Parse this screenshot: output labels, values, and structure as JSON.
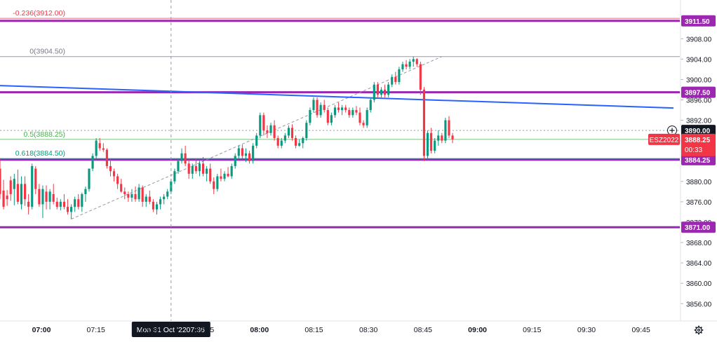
{
  "chart_data": {
    "type": "candlestick",
    "symbol": "ESZ2022",
    "price_axis": {
      "ticks": [
        "3908.00",
        "3904.00",
        "3900.00",
        "3896.00",
        "3892.00",
        "3888.00",
        "3884.00",
        "3880.00",
        "3876.00",
        "3872.00",
        "3868.00",
        "3864.00",
        "3860.00",
        "3856.00"
      ],
      "range": [
        3852.6,
        3915.6
      ]
    },
    "time_axis": {
      "ticks": [
        {
          "label": "07:00",
          "bold": true
        },
        {
          "label": "07:15",
          "bold": false
        },
        {
          "label": "07:30",
          "bold": false
        },
        {
          "label": "07:45",
          "bold": false
        },
        {
          "label": "08:00",
          "bold": true
        },
        {
          "label": "08:15",
          "bold": false
        },
        {
          "label": "08:30",
          "bold": false
        },
        {
          "label": "08:45",
          "bold": false
        },
        {
          "label": "09:00",
          "bold": true
        },
        {
          "label": "09:15",
          "bold": false
        },
        {
          "label": "09:30",
          "bold": false
        },
        {
          "label": "09:45",
          "bold": false
        }
      ],
      "start": "06:48",
      "end": "09:57",
      "bar_minutes": 1
    },
    "crosshair": {
      "date_label": "Mon 31 Oct '22",
      "time_label": "07:36",
      "time": "07:36"
    },
    "level_lines": [
      {
        "price": 3911.5,
        "label": "3911.50",
        "color": "#9c27b0"
      },
      {
        "price": 3897.5,
        "label": "3897.50",
        "color": "#9c27b0"
      },
      {
        "price": 3884.25,
        "label": "3884.25",
        "color": "#9c27b0"
      },
      {
        "price": 3871.0,
        "label": "3871.00",
        "color": "#9c27b0"
      }
    ],
    "fibonacci": [
      {
        "label": "-0.236(3912.00)",
        "price": 3912.0,
        "color": "#f23645"
      },
      {
        "label": "0(3904.50)",
        "price": 3904.5,
        "color": "#787b86"
      },
      {
        "label": "0.5(3888.25)",
        "price": 3888.25,
        "color": "#4caf50"
      },
      {
        "label": "0.618(3884.50)",
        "price": 3884.5,
        "color": "#089981"
      }
    ],
    "trendline": {
      "points": [
        {
          "time": "06:48",
          "price": 3898.8
        },
        {
          "time": "09:57",
          "price": 3894.4
        }
      ],
      "color": "#2962ff"
    },
    "fib_base_line": {
      "points": [
        {
          "time": "07:08",
          "price": 3872.6
        },
        {
          "time": "08:52",
          "price": 3904.5
        }
      ]
    },
    "current_price": {
      "label": "3890.00",
      "price": 3890.0
    },
    "last_price": {
      "label": "3888.25",
      "countdown": "00:33",
      "price": 3888.25,
      "color": "#f23645"
    },
    "candles": [
      {
        "time": "06:48",
        "o": 3882.5,
        "h": 3884.2,
        "l": 3876.5,
        "c": 3877.5
      },
      {
        "time": "06:49",
        "o": 3878.2,
        "h": 3880.3,
        "l": 3874.5,
        "c": 3875.0
      },
      {
        "time": "06:50",
        "o": 3877.2,
        "h": 3878.3,
        "l": 3875.2,
        "c": 3876.5
      },
      {
        "time": "06:51",
        "o": 3880.2,
        "h": 3881.0,
        "l": 3876.2,
        "c": 3877.5
      },
      {
        "time": "06:52",
        "o": 3878.5,
        "h": 3881.5,
        "l": 3875.3,
        "c": 3880.5
      },
      {
        "time": "06:53",
        "o": 3879.5,
        "h": 3882.3,
        "l": 3875.5,
        "c": 3876.0
      },
      {
        "time": "06:54",
        "o": 3875.5,
        "h": 3881.0,
        "l": 3874.5,
        "c": 3879.5
      },
      {
        "time": "06:55",
        "o": 3879.5,
        "h": 3881.0,
        "l": 3875.2,
        "c": 3876.5
      },
      {
        "time": "06:56",
        "o": 3876.0,
        "h": 3877.5,
        "l": 3873.5,
        "c": 3875.0
      },
      {
        "time": "06:57",
        "o": 3875.0,
        "h": 3883.5,
        "l": 3874.5,
        "c": 3883.0
      },
      {
        "time": "06:58",
        "o": 3882.5,
        "h": 3883.0,
        "l": 3877.5,
        "c": 3878.5
      },
      {
        "time": "06:59",
        "o": 3878.5,
        "h": 3879.5,
        "l": 3875.0,
        "c": 3875.5
      },
      {
        "time": "07:00",
        "o": 3875.5,
        "h": 3879.2,
        "l": 3872.8,
        "c": 3878.5
      },
      {
        "time": "07:01",
        "o": 3878.0,
        "h": 3879.2,
        "l": 3874.5,
        "c": 3876.0
      },
      {
        "time": "07:02",
        "o": 3876.0,
        "h": 3878.5,
        "l": 3874.5,
        "c": 3878.0
      },
      {
        "time": "07:03",
        "o": 3877.5,
        "h": 3879.5,
        "l": 3875.5,
        "c": 3876.0
      },
      {
        "time": "07:04",
        "o": 3876.0,
        "h": 3876.8,
        "l": 3874.5,
        "c": 3875.0
      },
      {
        "time": "07:05",
        "o": 3875.0,
        "h": 3876.5,
        "l": 3874.3,
        "c": 3876.0
      },
      {
        "time": "07:06",
        "o": 3876.0,
        "h": 3877.5,
        "l": 3874.5,
        "c": 3875.0
      },
      {
        "time": "07:07",
        "o": 3875.0,
        "h": 3876.5,
        "l": 3873.5,
        "c": 3874.0
      },
      {
        "time": "07:08",
        "o": 3874.0,
        "h": 3875.5,
        "l": 3872.6,
        "c": 3875.0
      },
      {
        "time": "07:09",
        "o": 3875.0,
        "h": 3877.0,
        "l": 3874.0,
        "c": 3876.5
      },
      {
        "time": "07:10",
        "o": 3876.5,
        "h": 3877.5,
        "l": 3874.5,
        "c": 3875.0
      },
      {
        "time": "07:11",
        "o": 3875.0,
        "h": 3877.8,
        "l": 3874.0,
        "c": 3877.5
      },
      {
        "time": "07:12",
        "o": 3877.5,
        "h": 3879.0,
        "l": 3876.0,
        "c": 3878.5
      },
      {
        "time": "07:13",
        "o": 3878.5,
        "h": 3882.5,
        "l": 3878.0,
        "c": 3882.5
      },
      {
        "time": "07:14",
        "o": 3882.5,
        "h": 3885.5,
        "l": 3882.0,
        "c": 3885.0
      },
      {
        "time": "07:15",
        "o": 3885.0,
        "h": 3888.5,
        "l": 3884.5,
        "c": 3888.0
      },
      {
        "time": "07:16",
        "o": 3887.5,
        "h": 3888.5,
        "l": 3886.0,
        "c": 3886.5
      },
      {
        "time": "07:17",
        "o": 3886.5,
        "h": 3887.5,
        "l": 3885.8,
        "c": 3886.2
      },
      {
        "time": "07:18",
        "o": 3886.2,
        "h": 3886.5,
        "l": 3882.5,
        "c": 3883.0
      },
      {
        "time": "07:19",
        "o": 3883.0,
        "h": 3884.5,
        "l": 3881.0,
        "c": 3882.0
      },
      {
        "time": "07:20",
        "o": 3882.0,
        "h": 3882.5,
        "l": 3880.0,
        "c": 3881.0
      },
      {
        "time": "07:21",
        "o": 3881.0,
        "h": 3881.5,
        "l": 3878.5,
        "c": 3879.5
      },
      {
        "time": "07:22",
        "o": 3879.5,
        "h": 3880.5,
        "l": 3877.8,
        "c": 3878.0
      },
      {
        "time": "07:23",
        "o": 3878.0,
        "h": 3878.8,
        "l": 3876.5,
        "c": 3877.5
      },
      {
        "time": "07:24",
        "o": 3877.5,
        "h": 3878.0,
        "l": 3876.0,
        "c": 3876.8
      },
      {
        "time": "07:25",
        "o": 3876.8,
        "h": 3878.5,
        "l": 3876.0,
        "c": 3877.5
      },
      {
        "time": "07:26",
        "o": 3877.5,
        "h": 3879.0,
        "l": 3876.0,
        "c": 3876.5
      },
      {
        "time": "07:27",
        "o": 3876.5,
        "h": 3879.5,
        "l": 3876.0,
        "c": 3878.8
      },
      {
        "time": "07:28",
        "o": 3878.8,
        "h": 3879.2,
        "l": 3875.0,
        "c": 3876.0
      },
      {
        "time": "07:29",
        "o": 3876.0,
        "h": 3877.5,
        "l": 3875.0,
        "c": 3877.0
      },
      {
        "time": "07:30",
        "o": 3877.0,
        "h": 3878.2,
        "l": 3875.5,
        "c": 3876.0
      },
      {
        "time": "07:31",
        "o": 3876.0,
        "h": 3876.5,
        "l": 3874.0,
        "c": 3874.5
      },
      {
        "time": "07:32",
        "o": 3874.5,
        "h": 3876.0,
        "l": 3873.5,
        "c": 3875.5
      },
      {
        "time": "07:33",
        "o": 3875.5,
        "h": 3877.0,
        "l": 3874.5,
        "c": 3876.5
      },
      {
        "time": "07:34",
        "o": 3876.5,
        "h": 3877.5,
        "l": 3875.5,
        "c": 3877.0
      },
      {
        "time": "07:35",
        "o": 3877.0,
        "h": 3878.5,
        "l": 3876.5,
        "c": 3878.0
      },
      {
        "time": "07:36",
        "o": 3878.0,
        "h": 3880.5,
        "l": 3877.5,
        "c": 3880.0
      },
      {
        "time": "07:37",
        "o": 3880.0,
        "h": 3882.5,
        "l": 3879.5,
        "c": 3882.0
      },
      {
        "time": "07:38",
        "o": 3882.0,
        "h": 3884.5,
        "l": 3881.5,
        "c": 3884.0
      },
      {
        "time": "07:39",
        "o": 3884.0,
        "h": 3886.5,
        "l": 3883.5,
        "c": 3885.5
      },
      {
        "time": "07:40",
        "o": 3885.5,
        "h": 3887.0,
        "l": 3883.0,
        "c": 3883.5
      },
      {
        "time": "07:41",
        "o": 3883.5,
        "h": 3884.5,
        "l": 3880.5,
        "c": 3881.5
      },
      {
        "time": "07:42",
        "o": 3881.5,
        "h": 3883.5,
        "l": 3880.5,
        "c": 3883.0
      },
      {
        "time": "07:43",
        "o": 3883.0,
        "h": 3884.5,
        "l": 3881.5,
        "c": 3882.0
      },
      {
        "time": "07:44",
        "o": 3882.0,
        "h": 3884.0,
        "l": 3881.0,
        "c": 3883.5
      },
      {
        "time": "07:45",
        "o": 3883.5,
        "h": 3884.8,
        "l": 3881.0,
        "c": 3881.5
      },
      {
        "time": "07:46",
        "o": 3881.5,
        "h": 3883.0,
        "l": 3880.0,
        "c": 3882.5
      },
      {
        "time": "07:47",
        "o": 3882.5,
        "h": 3883.5,
        "l": 3879.5,
        "c": 3880.0
      },
      {
        "time": "07:48",
        "o": 3880.0,
        "h": 3880.8,
        "l": 3877.5,
        "c": 3878.5
      },
      {
        "time": "07:49",
        "o": 3878.5,
        "h": 3881.5,
        "l": 3878.0,
        "c": 3881.0
      },
      {
        "time": "07:50",
        "o": 3881.0,
        "h": 3882.5,
        "l": 3880.0,
        "c": 3880.5
      },
      {
        "time": "07:51",
        "o": 3880.5,
        "h": 3882.0,
        "l": 3880.0,
        "c": 3881.5
      },
      {
        "time": "07:52",
        "o": 3881.5,
        "h": 3882.8,
        "l": 3880.8,
        "c": 3881.0
      },
      {
        "time": "07:53",
        "o": 3881.0,
        "h": 3883.5,
        "l": 3880.5,
        "c": 3883.0
      },
      {
        "time": "07:54",
        "o": 3883.0,
        "h": 3885.5,
        "l": 3882.5,
        "c": 3885.0
      },
      {
        "time": "07:55",
        "o": 3885.0,
        "h": 3887.0,
        "l": 3884.5,
        "c": 3886.5
      },
      {
        "time": "07:56",
        "o": 3886.5,
        "h": 3887.2,
        "l": 3884.5,
        "c": 3885.0
      },
      {
        "time": "07:57",
        "o": 3885.0,
        "h": 3886.5,
        "l": 3883.8,
        "c": 3885.5
      },
      {
        "time": "07:58",
        "o": 3885.5,
        "h": 3886.0,
        "l": 3883.5,
        "c": 3884.0
      },
      {
        "time": "07:59",
        "o": 3884.0,
        "h": 3887.5,
        "l": 3883.5,
        "c": 3887.0
      },
      {
        "time": "08:00",
        "o": 3887.0,
        "h": 3889.5,
        "l": 3886.5,
        "c": 3889.0
      },
      {
        "time": "08:01",
        "o": 3889.0,
        "h": 3893.5,
        "l": 3888.5,
        "c": 3893.0
      },
      {
        "time": "08:02",
        "o": 3893.0,
        "h": 3893.5,
        "l": 3889.0,
        "c": 3890.0
      },
      {
        "time": "08:03",
        "o": 3890.0,
        "h": 3891.0,
        "l": 3888.5,
        "c": 3889.5
      },
      {
        "time": "08:04",
        "o": 3889.5,
        "h": 3891.5,
        "l": 3889.0,
        "c": 3891.0
      },
      {
        "time": "08:05",
        "o": 3891.0,
        "h": 3892.0,
        "l": 3888.0,
        "c": 3888.5
      },
      {
        "time": "08:06",
        "o": 3888.5,
        "h": 3889.0,
        "l": 3886.5,
        "c": 3887.0
      },
      {
        "time": "08:07",
        "o": 3887.0,
        "h": 3888.5,
        "l": 3886.5,
        "c": 3888.0
      },
      {
        "time": "08:08",
        "o": 3888.0,
        "h": 3889.5,
        "l": 3887.5,
        "c": 3889.0
      },
      {
        "time": "08:09",
        "o": 3889.0,
        "h": 3891.0,
        "l": 3888.5,
        "c": 3890.5
      },
      {
        "time": "08:10",
        "o": 3890.5,
        "h": 3891.2,
        "l": 3888.0,
        "c": 3888.5
      },
      {
        "time": "08:11",
        "o": 3888.5,
        "h": 3889.0,
        "l": 3886.5,
        "c": 3887.0
      },
      {
        "time": "08:12",
        "o": 3887.0,
        "h": 3888.2,
        "l": 3886.8,
        "c": 3887.5
      },
      {
        "time": "08:13",
        "o": 3887.5,
        "h": 3888.8,
        "l": 3886.5,
        "c": 3888.5
      },
      {
        "time": "08:14",
        "o": 3888.5,
        "h": 3892.0,
        "l": 3888.0,
        "c": 3891.5
      },
      {
        "time": "08:15",
        "o": 3891.5,
        "h": 3894.5,
        "l": 3891.0,
        "c": 3894.0
      },
      {
        "time": "08:16",
        "o": 3894.0,
        "h": 3896.5,
        "l": 3893.5,
        "c": 3896.0
      },
      {
        "time": "08:17",
        "o": 3896.0,
        "h": 3896.5,
        "l": 3892.5,
        "c": 3893.0
      },
      {
        "time": "08:18",
        "o": 3893.0,
        "h": 3895.5,
        "l": 3892.5,
        "c": 3895.0
      },
      {
        "time": "08:19",
        "o": 3895.0,
        "h": 3896.0,
        "l": 3893.5,
        "c": 3894.0
      },
      {
        "time": "08:20",
        "o": 3894.0,
        "h": 3894.5,
        "l": 3891.0,
        "c": 3891.5
      },
      {
        "time": "08:21",
        "o": 3891.5,
        "h": 3893.5,
        "l": 3891.0,
        "c": 3893.0
      },
      {
        "time": "08:22",
        "o": 3893.0,
        "h": 3895.0,
        "l": 3892.5,
        "c": 3894.5
      },
      {
        "time": "08:23",
        "o": 3894.5,
        "h": 3895.5,
        "l": 3893.5,
        "c": 3894.0
      },
      {
        "time": "08:24",
        "o": 3894.0,
        "h": 3895.0,
        "l": 3893.0,
        "c": 3894.5
      },
      {
        "time": "08:25",
        "o": 3894.5,
        "h": 3895.0,
        "l": 3893.5,
        "c": 3894.0
      },
      {
        "time": "08:26",
        "o": 3894.0,
        "h": 3894.5,
        "l": 3892.5,
        "c": 3893.0
      },
      {
        "time": "08:27",
        "o": 3893.0,
        "h": 3894.5,
        "l": 3892.5,
        "c": 3894.0
      },
      {
        "time": "08:28",
        "o": 3894.0,
        "h": 3894.8,
        "l": 3893.0,
        "c": 3893.5
      },
      {
        "time": "08:29",
        "o": 3893.5,
        "h": 3894.5,
        "l": 3891.0,
        "c": 3891.5
      },
      {
        "time": "08:30",
        "o": 3891.5,
        "h": 3892.0,
        "l": 3890.5,
        "c": 3891.0
      },
      {
        "time": "08:31",
        "o": 3891.0,
        "h": 3894.5,
        "l": 3890.5,
        "c": 3894.0
      },
      {
        "time": "08:32",
        "o": 3894.0,
        "h": 3896.5,
        "l": 3893.5,
        "c": 3896.0
      },
      {
        "time": "08:33",
        "o": 3896.0,
        "h": 3899.5,
        "l": 3895.5,
        "c": 3899.0
      },
      {
        "time": "08:34",
        "o": 3899.0,
        "h": 3899.5,
        "l": 3896.5,
        "c": 3897.0
      },
      {
        "time": "08:35",
        "o": 3897.0,
        "h": 3898.5,
        "l": 3896.5,
        "c": 3898.0
      },
      {
        "time": "08:36",
        "o": 3898.0,
        "h": 3899.0,
        "l": 3896.5,
        "c": 3897.0
      },
      {
        "time": "08:37",
        "o": 3897.0,
        "h": 3899.5,
        "l": 3896.5,
        "c": 3899.0
      },
      {
        "time": "08:38",
        "o": 3899.0,
        "h": 3901.0,
        "l": 3898.5,
        "c": 3900.5
      },
      {
        "time": "08:39",
        "o": 3900.5,
        "h": 3901.5,
        "l": 3899.0,
        "c": 3899.5
      },
      {
        "time": "08:40",
        "o": 3899.5,
        "h": 3902.5,
        "l": 3899.0,
        "c": 3902.0
      },
      {
        "time": "08:41",
        "o": 3902.0,
        "h": 3903.5,
        "l": 3901.5,
        "c": 3903.0
      },
      {
        "time": "08:42",
        "o": 3903.0,
        "h": 3903.8,
        "l": 3902.0,
        "c": 3902.5
      },
      {
        "time": "08:43",
        "o": 3902.5,
        "h": 3904.0,
        "l": 3902.0,
        "c": 3903.5
      },
      {
        "time": "08:44",
        "o": 3903.5,
        "h": 3904.5,
        "l": 3902.5,
        "c": 3904.0
      },
      {
        "time": "08:45",
        "o": 3904.0,
        "h": 3904.2,
        "l": 3902.5,
        "c": 3903.0
      },
      {
        "time": "08:46",
        "o": 3903.0,
        "h": 3903.5,
        "l": 3897.0,
        "c": 3898.0
      },
      {
        "time": "08:47",
        "o": 3898.0,
        "h": 3898.5,
        "l": 3884.0,
        "c": 3885.0
      },
      {
        "time": "08:48",
        "o": 3885.0,
        "h": 3890.0,
        "l": 3884.5,
        "c": 3889.5
      },
      {
        "time": "08:49",
        "o": 3889.5,
        "h": 3890.5,
        "l": 3885.5,
        "c": 3886.0
      },
      {
        "time": "08:50",
        "o": 3886.0,
        "h": 3888.5,
        "l": 3885.5,
        "c": 3888.0
      },
      {
        "time": "08:51",
        "o": 3888.0,
        "h": 3890.0,
        "l": 3887.0,
        "c": 3889.0
      },
      {
        "time": "08:52",
        "o": 3889.0,
        "h": 3889.5,
        "l": 3887.5,
        "c": 3888.0
      },
      {
        "time": "08:53",
        "o": 3888.0,
        "h": 3892.5,
        "l": 3887.5,
        "c": 3892.0
      },
      {
        "time": "08:54",
        "o": 3892.0,
        "h": 3892.8,
        "l": 3888.5,
        "c": 3889.0
      },
      {
        "time": "08:55",
        "o": 3889.0,
        "h": 3889.5,
        "l": 3887.5,
        "c": 3888.25
      }
    ]
  }
}
